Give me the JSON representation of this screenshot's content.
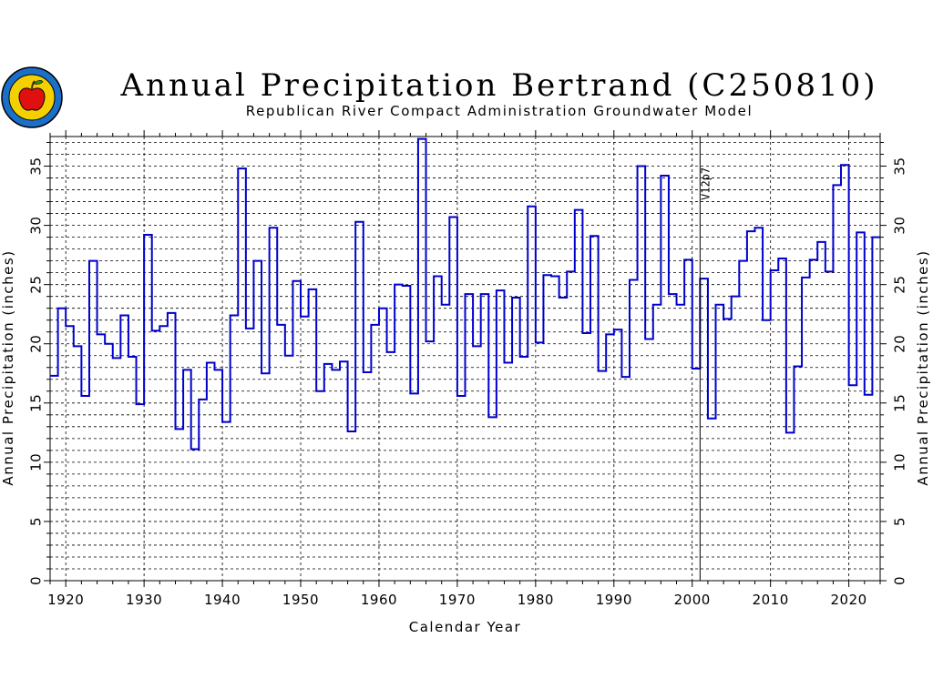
{
  "header": {
    "title": "Annual Precipitation Bertrand (C250810)",
    "subtitle": "Republican River Compact Administration Groundwater Model"
  },
  "logo": {
    "icon": "apple-seal-icon"
  },
  "chart_data": {
    "type": "line",
    "step": true,
    "xlabel": "Calendar Year",
    "ylabel": "Annual Precipitation (inches)",
    "ylabel_right": "Annual Precipitation (inches)",
    "xlim": [
      1918,
      2024
    ],
    "ylim": [
      0,
      37.5
    ],
    "x_ticks": [
      1920,
      1930,
      1940,
      1950,
      1960,
      1970,
      1980,
      1990,
      2000,
      2010,
      2020
    ],
    "y_ticks": [
      0,
      5,
      10,
      15,
      20,
      25,
      30,
      35
    ],
    "grid": true,
    "colors": {
      "line": "#0000cc",
      "grid": "#000000"
    },
    "annotation": {
      "x": 2001,
      "text": "V12p7"
    },
    "series": [
      {
        "x": [
          1918,
          1919,
          1920,
          1921,
          1922,
          1923,
          1924,
          1925,
          1926,
          1927,
          1928,
          1929,
          1930,
          1931,
          1932,
          1933,
          1934,
          1935,
          1936,
          1937,
          1938,
          1939,
          1940,
          1941,
          1942,
          1943,
          1944,
          1945,
          1946,
          1947,
          1948,
          1949,
          1950,
          1951,
          1952,
          1953,
          1954,
          1955,
          1956,
          1957,
          1958,
          1959,
          1960,
          1961,
          1962,
          1963,
          1964,
          1965,
          1966,
          1967,
          1968,
          1969,
          1970,
          1971,
          1972,
          1973,
          1974,
          1975,
          1976,
          1977,
          1978,
          1979,
          1980,
          1981,
          1982,
          1983,
          1984,
          1985,
          1986,
          1987,
          1988,
          1989,
          1990,
          1991,
          1992,
          1993,
          1994,
          1995,
          1996,
          1997,
          1998,
          1999,
          2000,
          2001,
          2002,
          2003,
          2004,
          2005,
          2006,
          2007,
          2008,
          2009,
          2010,
          2011,
          2012,
          2013,
          2014,
          2015,
          2016,
          2017,
          2018,
          2019,
          2020,
          2021,
          2022,
          2023
        ],
        "values": [
          17.3,
          23.0,
          21.5,
          19.8,
          15.6,
          27.0,
          20.8,
          20.0,
          18.8,
          22.4,
          18.9,
          14.9,
          29.2,
          21.1,
          21.5,
          22.6,
          12.8,
          17.8,
          11.1,
          15.3,
          18.4,
          17.8,
          13.4,
          22.4,
          34.8,
          21.3,
          27.0,
          17.5,
          29.8,
          21.6,
          19.0,
          25.3,
          22.3,
          24.6,
          16.0,
          18.3,
          17.8,
          18.5,
          12.6,
          30.3,
          17.6,
          21.6,
          23.0,
          19.3,
          25.0,
          24.9,
          15.8,
          37.3,
          20.2,
          25.7,
          23.3,
          30.7,
          15.6,
          24.2,
          19.8,
          24.2,
          13.8,
          24.5,
          18.4,
          23.9,
          18.9,
          31.6,
          20.1,
          25.8,
          25.7,
          23.9,
          26.1,
          31.3,
          20.9,
          29.1,
          17.7,
          20.8,
          21.2,
          17.2,
          25.4,
          35.0,
          20.4,
          23.3,
          34.2,
          24.2,
          23.3,
          27.1,
          17.9,
          25.5,
          13.7,
          23.3,
          22.1,
          24.0,
          27.0,
          29.5,
          29.8,
          22.0,
          26.2,
          27.2,
          12.5,
          18.1,
          25.6,
          27.1,
          28.6,
          26.1,
          33.4,
          35.1,
          16.5,
          29.4,
          15.7,
          29.0
        ]
      }
    ]
  }
}
